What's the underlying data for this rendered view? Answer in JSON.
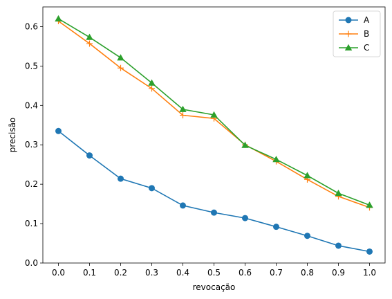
{
  "chart_data": {
    "type": "line",
    "xlabel": "revocação",
    "ylabel": "precisão",
    "x": [
      0.0,
      0.1,
      0.2,
      0.3,
      0.4,
      0.5,
      0.6,
      0.7,
      0.8,
      0.9,
      1.0
    ],
    "xlim": [
      -0.05,
      1.05
    ],
    "ylim": [
      0.0,
      0.65
    ],
    "xticks": [
      "0.0",
      "0.1",
      "0.2",
      "0.3",
      "0.4",
      "0.5",
      "0.6",
      "0.7",
      "0.8",
      "0.9",
      "1.0"
    ],
    "yticks": [
      "0.0",
      "0.1",
      "0.2",
      "0.3",
      "0.4",
      "0.5",
      "0.6"
    ],
    "grid": false,
    "legend_position": "top-right",
    "series": [
      {
        "name": "A",
        "color": "#1f77b4",
        "marker": "circle",
        "values": [
          0.335,
          0.273,
          0.214,
          0.19,
          0.146,
          0.128,
          0.114,
          0.092,
          0.069,
          0.044,
          0.029
        ]
      },
      {
        "name": "B",
        "color": "#ff7f0e",
        "marker": "plus",
        "values": [
          0.614,
          0.557,
          0.495,
          0.443,
          0.375,
          0.367,
          0.3,
          0.258,
          0.212,
          0.169,
          0.141
        ]
      },
      {
        "name": "C",
        "color": "#2ca02c",
        "marker": "triangle",
        "values": [
          0.62,
          0.573,
          0.521,
          0.457,
          0.39,
          0.376,
          0.299,
          0.263,
          0.222,
          0.177,
          0.147
        ]
      }
    ]
  }
}
